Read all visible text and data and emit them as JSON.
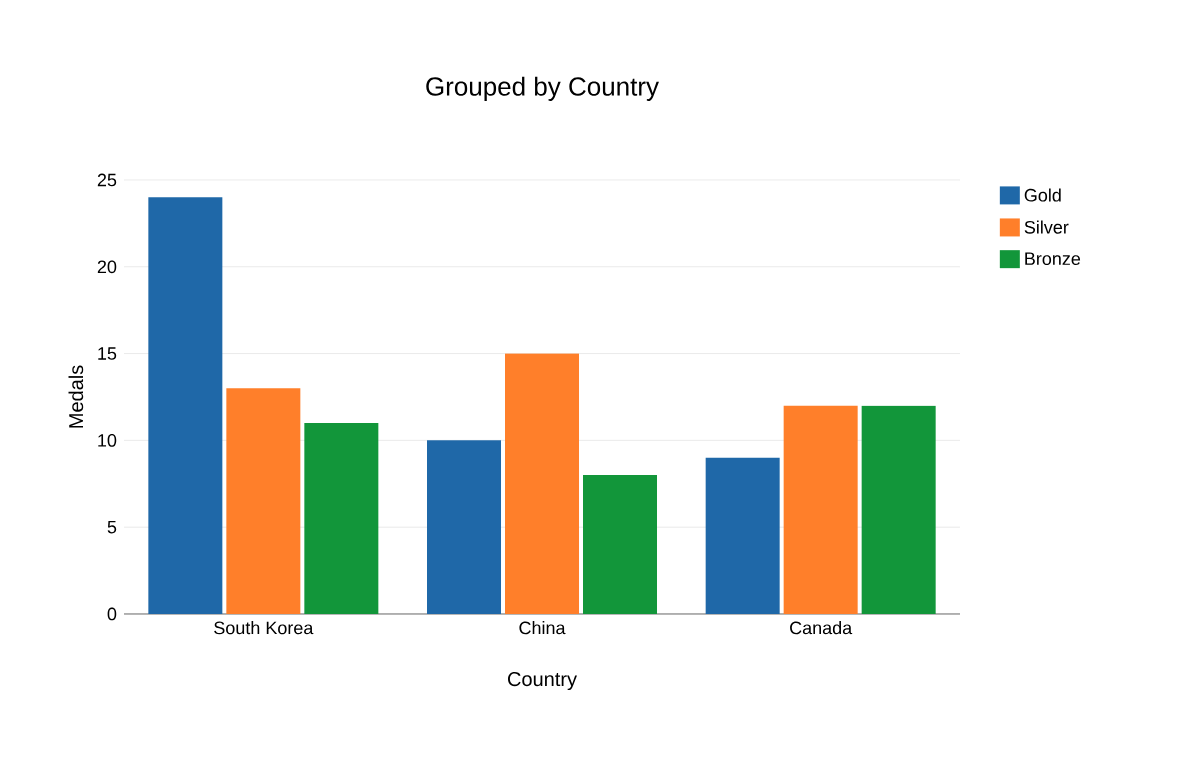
{
  "chart_data": {
    "type": "bar",
    "title": "Grouped by Country",
    "xlabel": "Country",
    "ylabel": "Medals",
    "categories": [
      "South Korea",
      "China",
      "Canada"
    ],
    "series": [
      {
        "name": "Gold",
        "color": "#1f68a8",
        "values": [
          24,
          10,
          9
        ]
      },
      {
        "name": "Silver",
        "color": "#ff7f2a",
        "values": [
          13,
          15,
          12
        ]
      },
      {
        "name": "Bronze",
        "color": "#12963a",
        "values": [
          11,
          8,
          12
        ]
      }
    ],
    "ylim": [
      0,
      25
    ],
    "yticks": [
      0,
      5,
      10,
      15,
      20,
      25
    ],
    "grid": "y",
    "legend": "top right"
  }
}
